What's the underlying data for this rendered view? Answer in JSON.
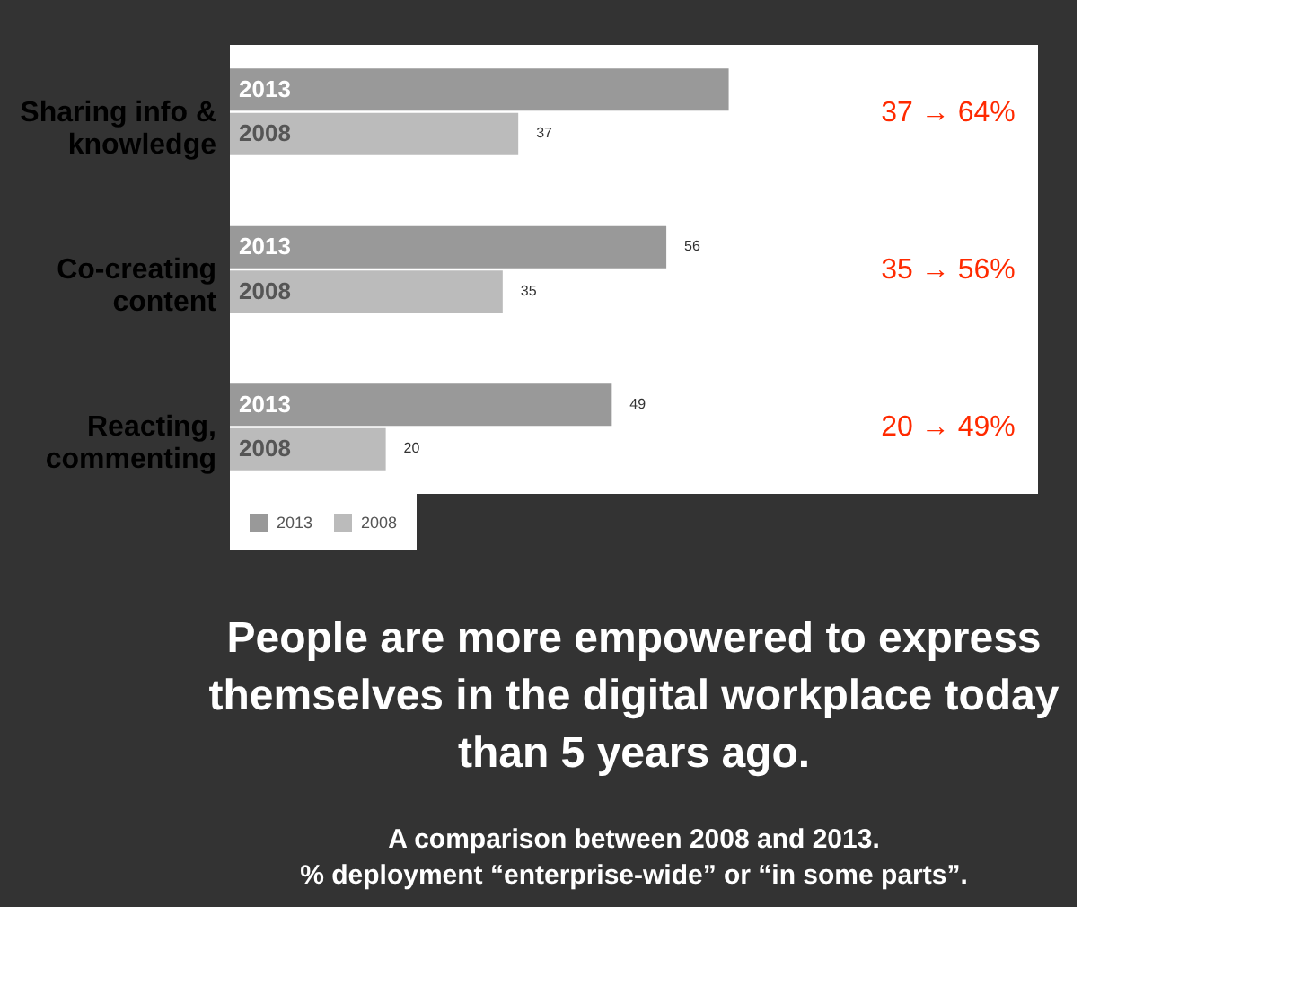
{
  "chart_data": {
    "type": "bar",
    "orientation": "horizontal",
    "title": "People are more empowered to express\nthemselves in the digital workplace today\nthan 5 years ago.",
    "subtitle": "A comparison between 2008 and 2013.\n% deployment “enterprise-wide” or “in some parts”.",
    "categories": [
      "Sharing info &\nknowledge",
      "Co-creating\ncontent",
      "Reacting,\ncommenting"
    ],
    "series": [
      {
        "name": "2013",
        "color": "#999999",
        "values": [
          64,
          56,
          49
        ],
        "value_labels": [
          null,
          "56",
          "49"
        ]
      },
      {
        "name": "2008",
        "color": "#bbbbbb",
        "values": [
          37,
          35,
          20
        ],
        "value_labels": [
          "37",
          "35",
          "20"
        ]
      }
    ],
    "annotations": [
      "37 → 64%",
      "35 → 56%",
      "20 → 49%"
    ],
    "legend": "bottom",
    "grid": false
  }
}
